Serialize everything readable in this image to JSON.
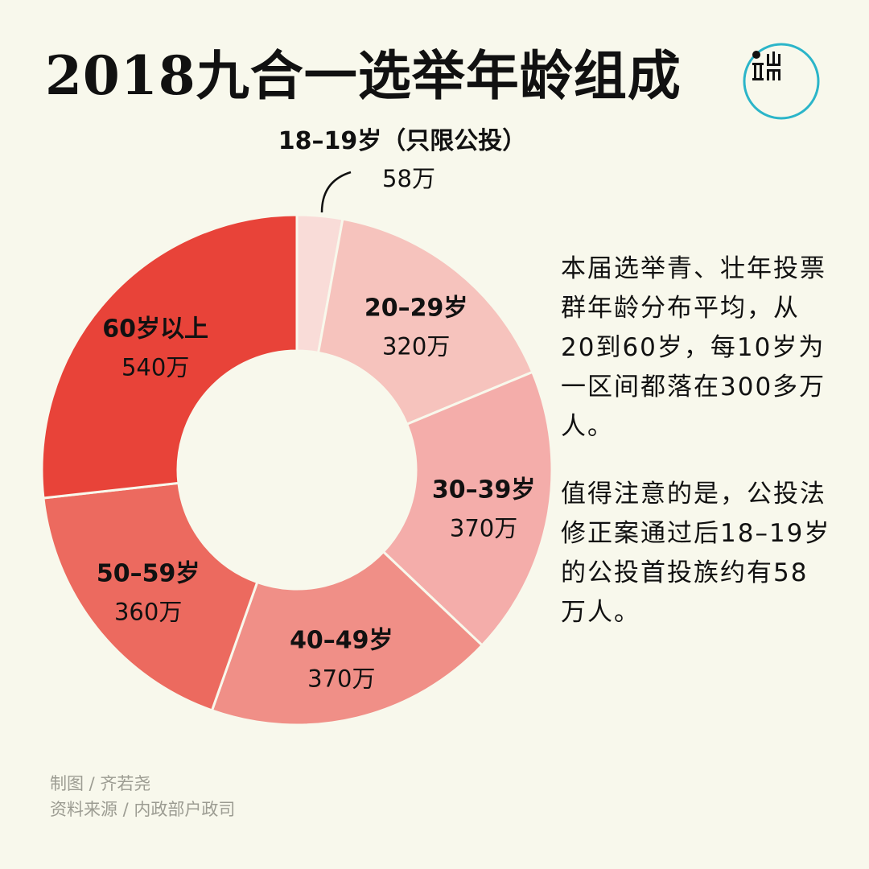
{
  "title": "2018九合一选举年龄组成",
  "logo": {
    "name": "端 logo",
    "accent": "#2bb5c9"
  },
  "chart_data": {
    "type": "pie",
    "donut": true,
    "categories": [
      "18–19岁（只限公投）",
      "20–29岁",
      "30–39岁",
      "40–49岁",
      "50–59岁",
      "60岁以上"
    ],
    "values": [
      58,
      320,
      370,
      370,
      360,
      540
    ],
    "value_labels": [
      "58万",
      "320万",
      "370万",
      "370万",
      "360万",
      "540万"
    ],
    "unit": "万",
    "colors": [
      "#f9dcd8",
      "#f6c3bd",
      "#f4adaa",
      "#f08f87",
      "#ec6a5f",
      "#e84339"
    ],
    "start": "top",
    "direction": "clockwise"
  },
  "notes": [
    "本届选举青、壮年投票群年龄分布平均，从20到60岁，每10岁为一区间都落在300多万人。",
    "值得注意的是，公投法修正案通过后18–19岁的公投首投族约有58万人。"
  ],
  "credits": {
    "author": "制图 / 齐若尧",
    "source": "资料来源 / 内政部户政司"
  }
}
